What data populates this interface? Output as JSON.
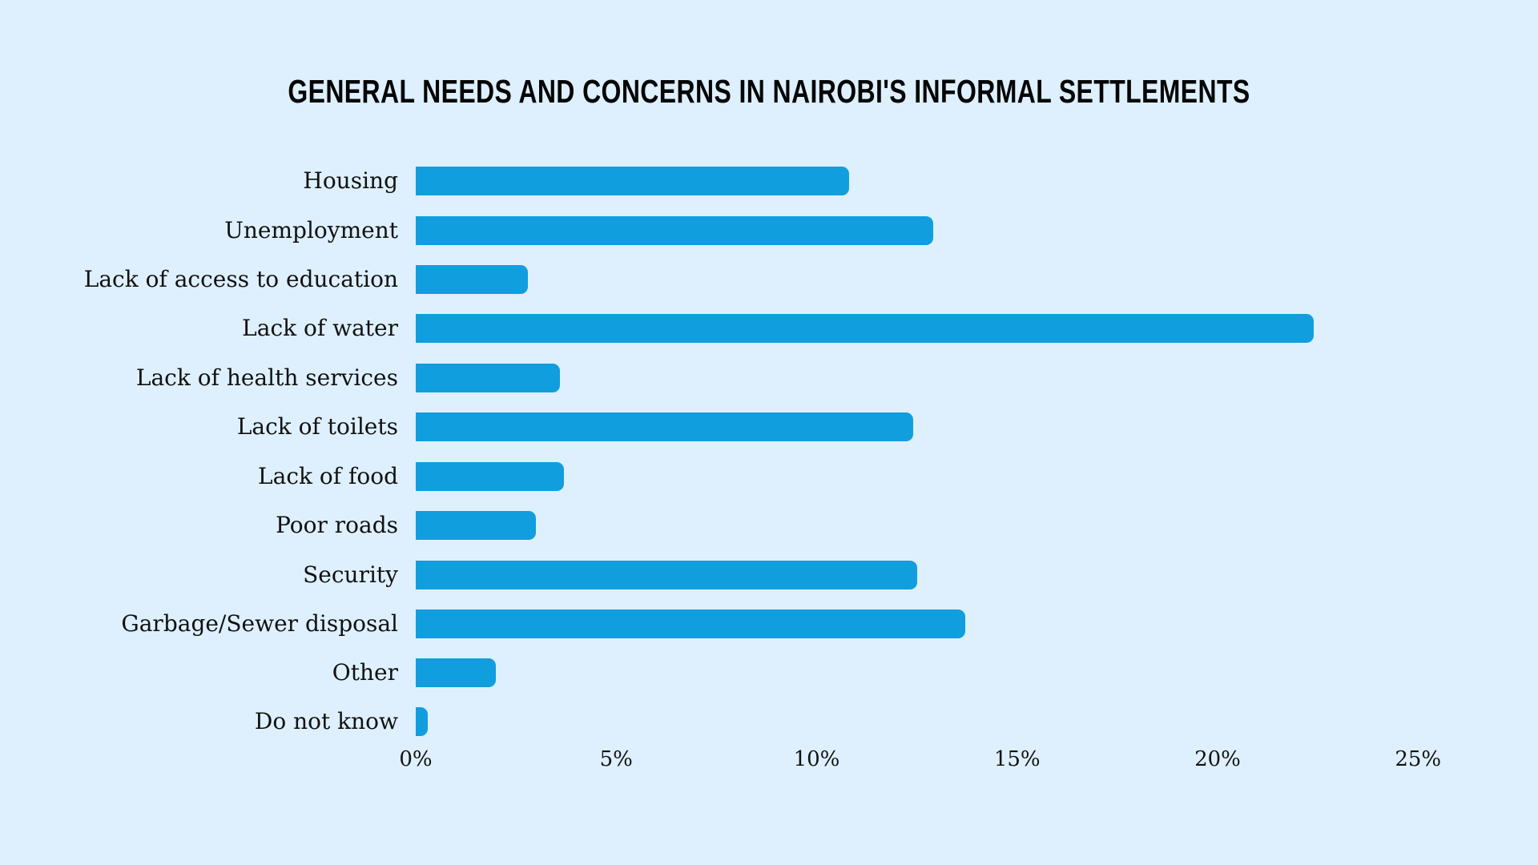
{
  "chart_data": {
    "type": "bar",
    "orientation": "horizontal",
    "title": "GENERAL NEEDS AND CONCERNS IN NAIROBI'S INFORMAL SETTLEMENTS",
    "xlabel": "",
    "ylabel": "",
    "categories": [
      "Housing",
      "Unemployment",
      "Lack of access to education",
      "Lack of water",
      "Lack of health services",
      "Lack of toilets",
      "Lack of food",
      "Poor roads",
      "Security",
      "Garbage/Sewer disposal",
      "Other",
      "Do not know"
    ],
    "values": [
      10.8,
      12.9,
      2.8,
      22.4,
      3.6,
      12.4,
      3.7,
      3.0,
      12.5,
      13.7,
      2.0,
      0.3
    ],
    "xlim": [
      0,
      25
    ],
    "x_ticks": [
      "0%",
      "5%",
      "10%",
      "15%",
      "20%",
      "25%"
    ],
    "grid": false,
    "legend": null,
    "bar_color": "#119ede",
    "background_color": "#def0fd"
  },
  "title": "GENERAL NEEDS AND CONCERNS IN NAIROBI'S INFORMAL SETTLEMENTS",
  "rows": [
    {
      "label": "Housing",
      "value": 10.8
    },
    {
      "label": "Unemployment",
      "value": 12.9
    },
    {
      "label": "Lack of access to education",
      "value": 2.8
    },
    {
      "label": "Lack of water",
      "value": 22.4
    },
    {
      "label": "Lack of health services",
      "value": 3.6
    },
    {
      "label": "Lack of toilets",
      "value": 12.4
    },
    {
      "label": "Lack of food",
      "value": 3.7
    },
    {
      "label": "Poor roads",
      "value": 3.0
    },
    {
      "label": "Security",
      "value": 12.5
    },
    {
      "label": "Garbage/Sewer disposal",
      "value": 13.7
    },
    {
      "label": "Other",
      "value": 2.0
    },
    {
      "label": "Do not know",
      "value": 0.3
    }
  ],
  "axis": {
    "ticks": [
      {
        "label": "0%",
        "value": 0
      },
      {
        "label": "5%",
        "value": 5
      },
      {
        "label": "10%",
        "value": 10
      },
      {
        "label": "15%",
        "value": 15
      },
      {
        "label": "20%",
        "value": 20
      },
      {
        "label": "25%",
        "value": 25
      }
    ]
  }
}
